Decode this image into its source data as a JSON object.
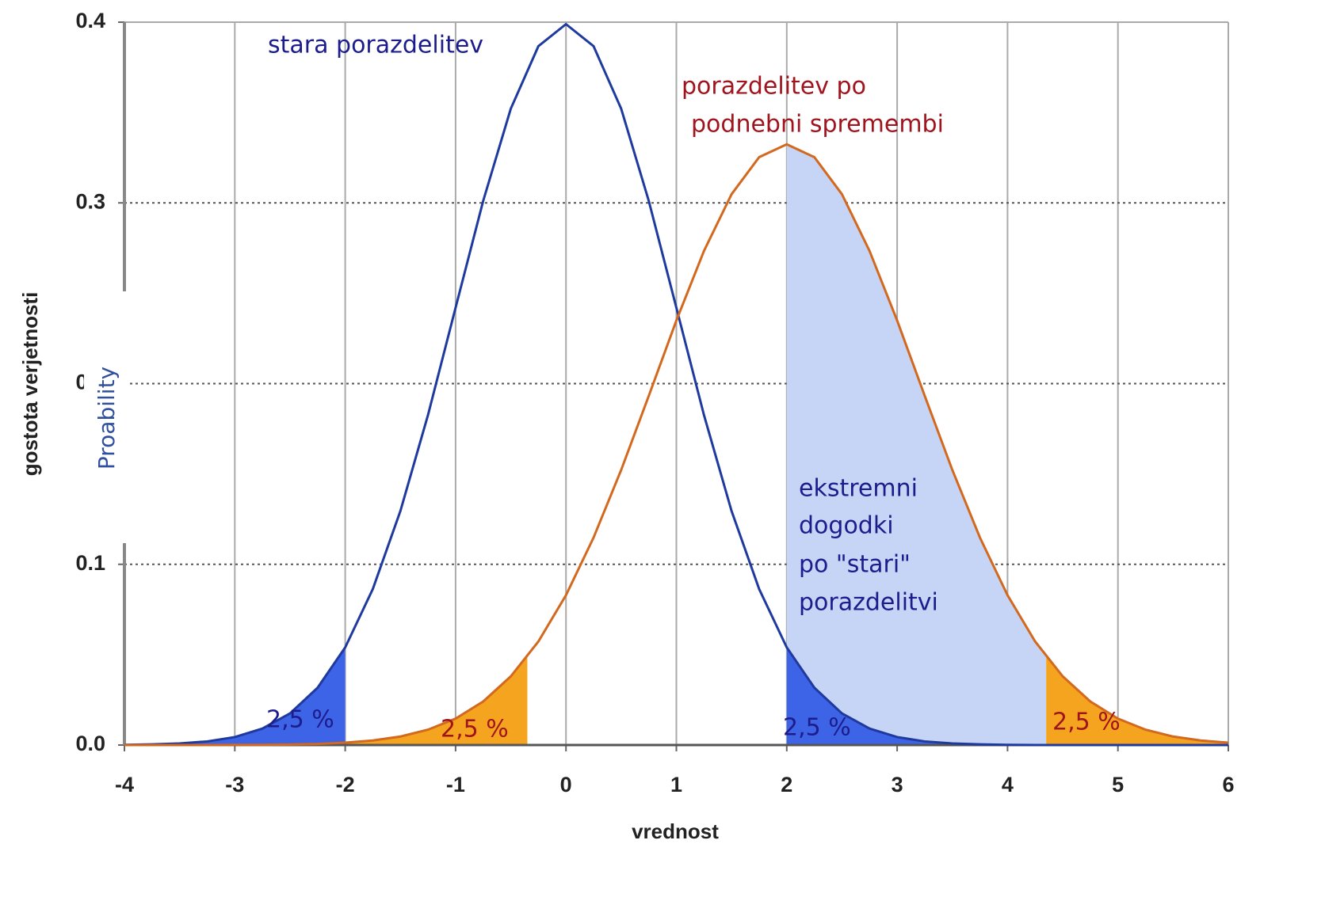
{
  "chart_data": {
    "type": "line",
    "x_label": "vrednost",
    "y_label": "gostota verjetnosti",
    "overlay_label": "Proability",
    "x": [
      -4,
      -3.75,
      -3.5,
      -3.25,
      -3,
      -2.75,
      -2.5,
      -2.25,
      -2,
      -1.75,
      -1.5,
      -1.25,
      -1,
      -0.75,
      -0.5,
      -0.25,
      0,
      0.25,
      0.5,
      0.75,
      1,
      1.25,
      1.5,
      1.75,
      2,
      2.25,
      2.5,
      2.75,
      3,
      3.25,
      3.5,
      3.75,
      4,
      4.25,
      4.5,
      4.75,
      5,
      5.25,
      5.5,
      5.75,
      6
    ],
    "series": [
      {
        "color": "#1f3a9e",
        "values": [
          0.0001,
          0.0004,
          0.0009,
          0.002,
          0.0044,
          0.0091,
          0.0175,
          0.0317,
          0.054,
          0.0863,
          0.1295,
          0.1826,
          0.242,
          0.3011,
          0.3521,
          0.3867,
          0.3989,
          0.3867,
          0.3521,
          0.3011,
          0.242,
          0.1826,
          0.1295,
          0.0863,
          0.054,
          0.0317,
          0.0175,
          0.0091,
          0.0044,
          0.002,
          0.0009,
          0.0004,
          0.0001,
          0,
          0,
          0,
          0,
          0,
          0,
          0,
          0
        ]
      },
      {
        "color": "#d2691e",
        "values": [
          0,
          0,
          0,
          0,
          0.0001,
          0.0001,
          0.0003,
          0.0006,
          0.0013,
          0.0025,
          0.0047,
          0.0085,
          0.0146,
          0.0241,
          0.038,
          0.0573,
          0.0829,
          0.1148,
          0.1522,
          0.1932,
          0.2349,
          0.2734,
          0.3048,
          0.3253,
          0.3324,
          0.3253,
          0.3048,
          0.2734,
          0.2349,
          0.1932,
          0.1522,
          0.1148,
          0.0829,
          0.0573,
          0.038,
          0.0241,
          0.0146,
          0.0085,
          0.0047,
          0.0025,
          0.0013
        ]
      }
    ],
    "shaded": [
      {
        "series": 1,
        "from": 2,
        "to": 4.35,
        "color": "#c6d4f5"
      },
      {
        "series": 1,
        "from": -4,
        "to": -0.35,
        "color": "#f5a41f"
      },
      {
        "series": 1,
        "from": 4.35,
        "to": 6,
        "color": "#f5a41f"
      },
      {
        "series": 0,
        "from": -4,
        "to": -2,
        "color": "#3d63e6"
      },
      {
        "series": 0,
        "from": 2,
        "to": 6,
        "color": "#3d63e6"
      }
    ],
    "annotations": [
      {
        "text": "stara porazdelitev",
        "color": "#1c1c8c"
      },
      {
        "text": "porazdelitev po",
        "color": "#a0141e"
      },
      {
        "text": "podnebni spremembi",
        "color": "#a0141e"
      },
      {
        "text": "ekstremni",
        "color": "#1c1c8c"
      },
      {
        "text": "dogodki",
        "color": "#1c1c8c"
      },
      {
        "text": "po \"stari\"",
        "color": "#1c1c8c"
      },
      {
        "text": "porazdelitvi",
        "color": "#1c1c8c"
      },
      {
        "text": "2,5 %",
        "color": "#1c1c8c"
      },
      {
        "text": "2,5 %",
        "color": "#a0141e"
      },
      {
        "text": "2,5 %",
        "color": "#1c1c8c"
      },
      {
        "text": "2,5 %",
        "color": "#a0141e"
      }
    ],
    "xlim": [
      -4,
      6
    ],
    "xticks": [
      -4,
      -3,
      -2,
      -1,
      0,
      1,
      2,
      3,
      4,
      5,
      6
    ],
    "ylim": [
      0,
      0.4
    ],
    "yticks": [
      {
        "value": 0,
        "label": "0.0"
      },
      0.1,
      0.2,
      0.3,
      0.4
    ],
    "grid": true
  }
}
